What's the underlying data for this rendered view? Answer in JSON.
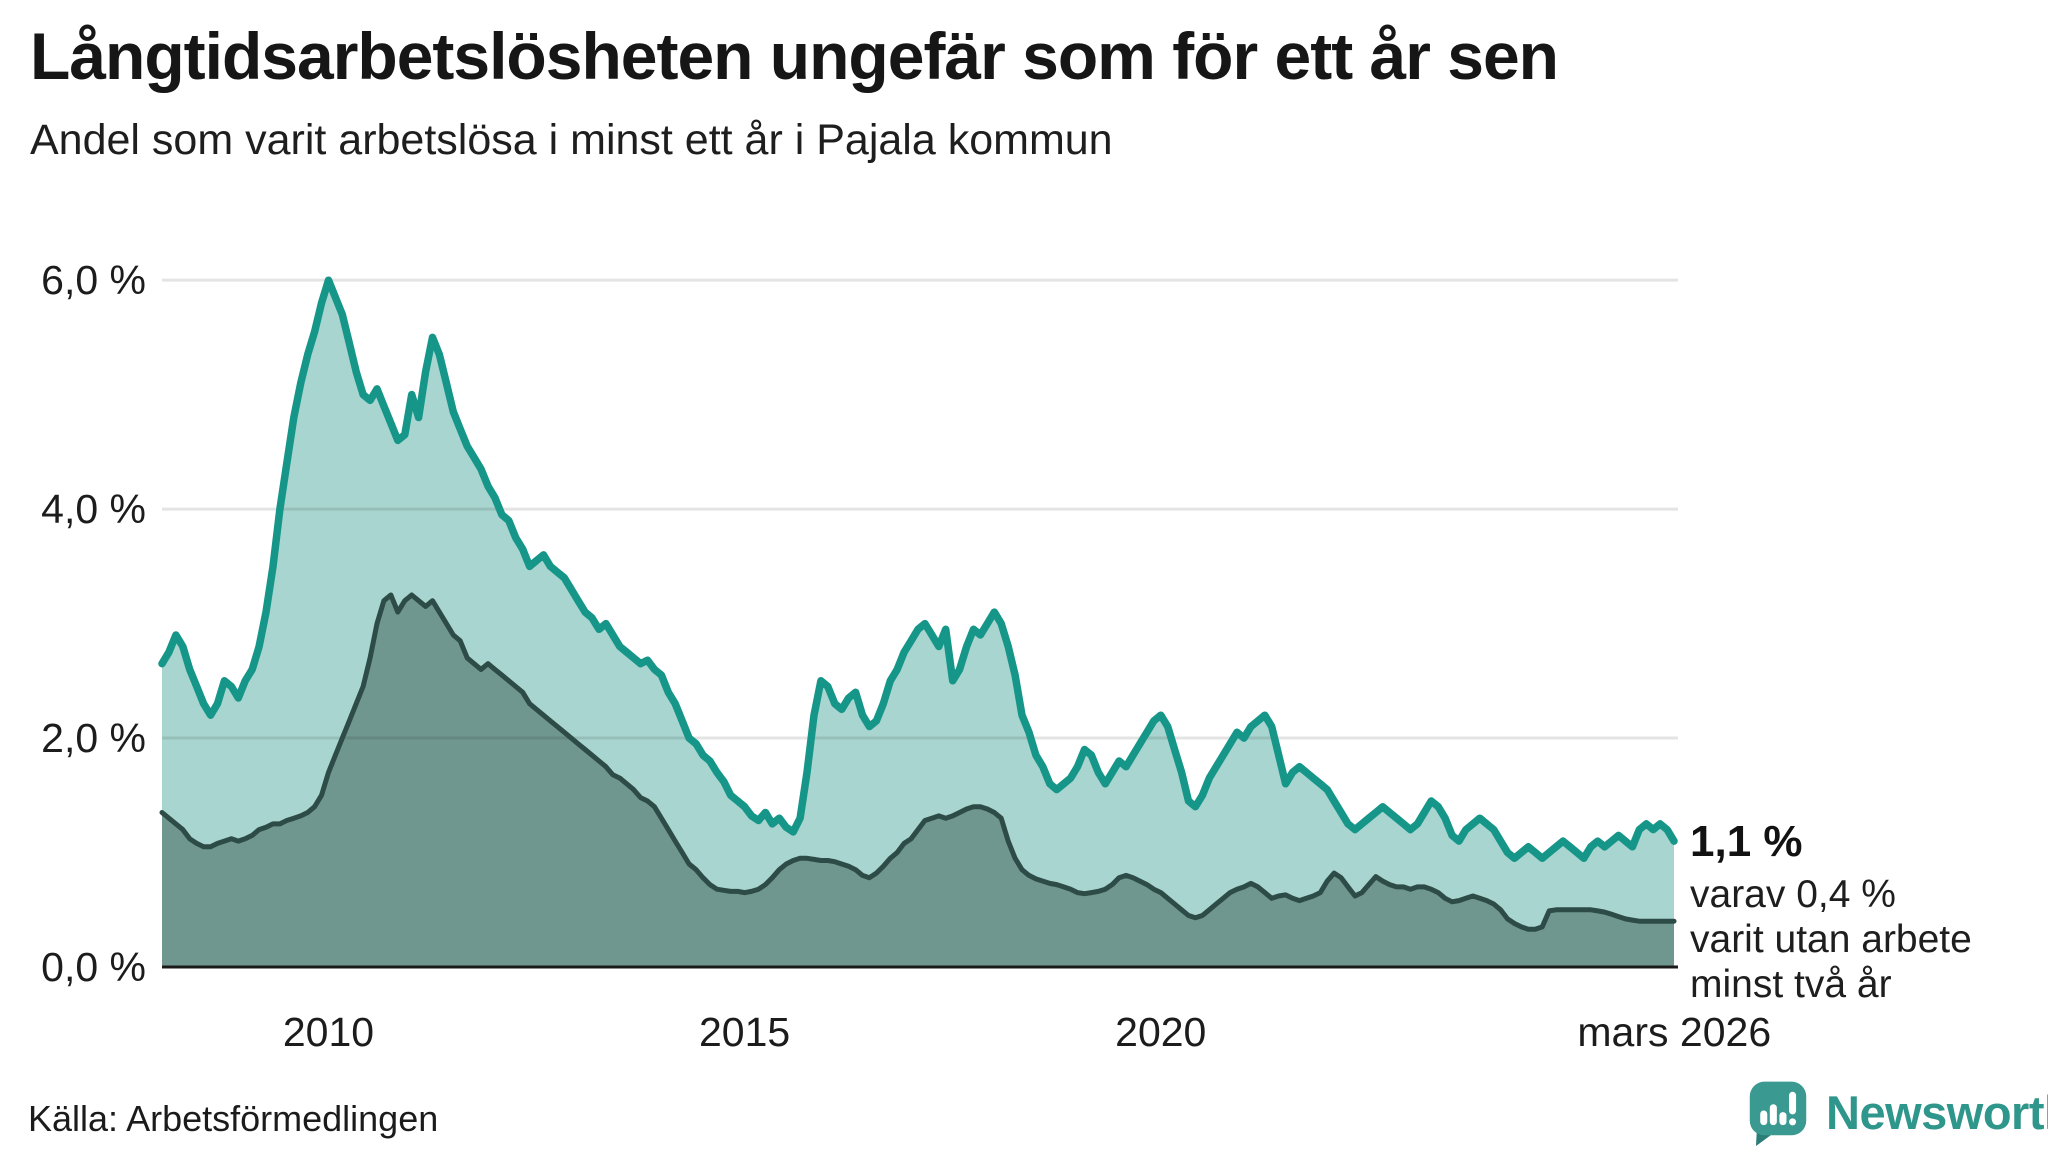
{
  "header": {
    "title": "Långtidsarbetslösheten ungefär som för ett år sen",
    "subtitle": "Andel som varit arbetslösa i minst ett år i Pajala kommun"
  },
  "chart_data": {
    "type": "area",
    "title": "Långtidsarbetslösheten ungefär som för ett år sen",
    "subtitle": "Andel som varit arbetslösa i minst ett år i Pajala kommun",
    "unit": "%",
    "x_start": "2008-01",
    "x_end": "2026-03",
    "xlabel": "",
    "ylabel": "",
    "ylim": [
      0,
      6
    ],
    "grid_values": [
      2,
      4,
      6
    ],
    "legend_position": "none",
    "y_ticks": [
      {
        "label": "6,0 %",
        "value": 6
      },
      {
        "label": "4,0 %",
        "value": 4
      },
      {
        "label": "2,0 %",
        "value": 2
      },
      {
        "label": "0,0 %",
        "value": 0
      }
    ],
    "x_ticks": [
      {
        "label": "2010",
        "t": 2010
      },
      {
        "label": "2015",
        "t": 2015
      },
      {
        "label": "2020",
        "t": 2020
      },
      {
        "label": "mars 2026",
        "t": 2026.17
      }
    ],
    "series": [
      {
        "name": "Arbetslösa minst ett år",
        "line_color": "#169688",
        "fill_color": "#a8d5cf",
        "values": [
          2.65,
          2.75,
          2.9,
          2.8,
          2.6,
          2.45,
          2.3,
          2.2,
          2.3,
          2.5,
          2.45,
          2.35,
          2.5,
          2.6,
          2.8,
          3.1,
          3.5,
          4.0,
          4.4,
          4.8,
          5.1,
          5.35,
          5.55,
          5.8,
          6.0,
          5.85,
          5.7,
          5.45,
          5.2,
          5.0,
          4.95,
          5.05,
          4.9,
          4.75,
          4.6,
          4.65,
          5.0,
          4.8,
          5.2,
          5.5,
          5.35,
          5.1,
          4.85,
          4.7,
          4.55,
          4.45,
          4.35,
          4.2,
          4.1,
          3.95,
          3.9,
          3.75,
          3.65,
          3.5,
          3.55,
          3.6,
          3.5,
          3.45,
          3.4,
          3.3,
          3.2,
          3.1,
          3.05,
          2.95,
          3.0,
          2.9,
          2.8,
          2.75,
          2.7,
          2.65,
          2.68,
          2.6,
          2.55,
          2.4,
          2.3,
          2.15,
          2.0,
          1.95,
          1.85,
          1.8,
          1.7,
          1.62,
          1.5,
          1.45,
          1.4,
          1.32,
          1.28,
          1.35,
          1.25,
          1.3,
          1.22,
          1.18,
          1.3,
          1.7,
          2.2,
          2.5,
          2.45,
          2.3,
          2.25,
          2.35,
          2.4,
          2.2,
          2.1,
          2.15,
          2.3,
          2.5,
          2.6,
          2.75,
          2.85,
          2.95,
          3.0,
          2.9,
          2.8,
          2.95,
          2.5,
          2.6,
          2.8,
          2.95,
          2.9,
          3.0,
          3.1,
          3.0,
          2.8,
          2.55,
          2.2,
          2.05,
          1.85,
          1.75,
          1.6,
          1.55,
          1.6,
          1.65,
          1.75,
          1.9,
          1.85,
          1.7,
          1.6,
          1.7,
          1.8,
          1.75,
          1.85,
          1.95,
          2.05,
          2.15,
          2.2,
          2.1,
          1.9,
          1.7,
          1.45,
          1.4,
          1.5,
          1.65,
          1.75,
          1.85,
          1.95,
          2.05,
          2.0,
          2.1,
          2.15,
          2.2,
          2.1,
          1.85,
          1.6,
          1.7,
          1.75,
          1.7,
          1.65,
          1.6,
          1.55,
          1.45,
          1.35,
          1.25,
          1.2,
          1.25,
          1.3,
          1.35,
          1.4,
          1.35,
          1.3,
          1.25,
          1.2,
          1.25,
          1.35,
          1.45,
          1.4,
          1.3,
          1.15,
          1.1,
          1.2,
          1.25,
          1.3,
          1.25,
          1.2,
          1.1,
          1.0,
          0.95,
          1.0,
          1.05,
          1.0,
          0.95,
          1.0,
          1.05,
          1.1,
          1.05,
          1.0,
          0.95,
          1.05,
          1.1,
          1.05,
          1.1,
          1.15,
          1.1,
          1.05,
          1.2,
          1.25,
          1.2,
          1.25,
          1.2,
          1.1
        ]
      },
      {
        "name": "Arbetslösa minst två år",
        "line_color": "#2e4c47",
        "fill_color": "#6f968f",
        "values": [
          1.35,
          1.3,
          1.25,
          1.2,
          1.12,
          1.08,
          1.05,
          1.05,
          1.08,
          1.1,
          1.12,
          1.1,
          1.12,
          1.15,
          1.2,
          1.22,
          1.25,
          1.25,
          1.28,
          1.3,
          1.32,
          1.35,
          1.4,
          1.5,
          1.7,
          1.85,
          2.0,
          2.15,
          2.3,
          2.45,
          2.7,
          3.0,
          3.2,
          3.25,
          3.1,
          3.2,
          3.25,
          3.2,
          3.15,
          3.2,
          3.1,
          3.0,
          2.9,
          2.85,
          2.7,
          2.65,
          2.6,
          2.65,
          2.6,
          2.55,
          2.5,
          2.45,
          2.4,
          2.3,
          2.25,
          2.2,
          2.15,
          2.1,
          2.05,
          2.0,
          1.95,
          1.9,
          1.85,
          1.8,
          1.75,
          1.68,
          1.65,
          1.6,
          1.55,
          1.48,
          1.45,
          1.4,
          1.3,
          1.2,
          1.1,
          1.0,
          0.9,
          0.85,
          0.78,
          0.72,
          0.68,
          0.67,
          0.66,
          0.66,
          0.65,
          0.66,
          0.68,
          0.72,
          0.78,
          0.85,
          0.9,
          0.93,
          0.95,
          0.95,
          0.94,
          0.93,
          0.93,
          0.92,
          0.9,
          0.88,
          0.85,
          0.8,
          0.78,
          0.82,
          0.88,
          0.95,
          1.0,
          1.08,
          1.12,
          1.2,
          1.28,
          1.3,
          1.32,
          1.3,
          1.32,
          1.35,
          1.38,
          1.4,
          1.4,
          1.38,
          1.35,
          1.3,
          1.1,
          0.95,
          0.85,
          0.8,
          0.77,
          0.75,
          0.73,
          0.72,
          0.7,
          0.68,
          0.65,
          0.64,
          0.65,
          0.66,
          0.68,
          0.72,
          0.78,
          0.8,
          0.78,
          0.75,
          0.72,
          0.68,
          0.65,
          0.6,
          0.55,
          0.5,
          0.45,
          0.43,
          0.45,
          0.5,
          0.55,
          0.6,
          0.65,
          0.68,
          0.7,
          0.73,
          0.7,
          0.65,
          0.6,
          0.62,
          0.63,
          0.6,
          0.58,
          0.6,
          0.62,
          0.65,
          0.75,
          0.82,
          0.78,
          0.7,
          0.62,
          0.65,
          0.72,
          0.79,
          0.75,
          0.72,
          0.7,
          0.7,
          0.68,
          0.7,
          0.7,
          0.68,
          0.65,
          0.6,
          0.57,
          0.58,
          0.6,
          0.62,
          0.6,
          0.58,
          0.55,
          0.5,
          0.42,
          0.38,
          0.35,
          0.33,
          0.33,
          0.35,
          0.49,
          0.5,
          0.5,
          0.5,
          0.5,
          0.5,
          0.5,
          0.49,
          0.48,
          0.46,
          0.44,
          0.42,
          0.41,
          0.4,
          0.4,
          0.4,
          0.4,
          0.4,
          0.4
        ]
      }
    ]
  },
  "annotation": {
    "value": "1,1 %",
    "detail1": "varav 0,4 %",
    "detail2": "varit utan arbete",
    "detail3": "minst två år"
  },
  "footer": {
    "source": "Källa: Arbetsförmedlingen",
    "brand": "Newsworthy"
  },
  "colors": {
    "line_primary": "#169688",
    "fill_primary": "#a8d5cf",
    "line_secondary": "#2e4c47",
    "fill_secondary": "#6f968f",
    "axis": "#1a1a1a",
    "grid": "#e3e3e3",
    "brand_teal": "#2f968c",
    "logo_bubble": "#3a9a91",
    "logo_tail": "#2b7d77"
  }
}
